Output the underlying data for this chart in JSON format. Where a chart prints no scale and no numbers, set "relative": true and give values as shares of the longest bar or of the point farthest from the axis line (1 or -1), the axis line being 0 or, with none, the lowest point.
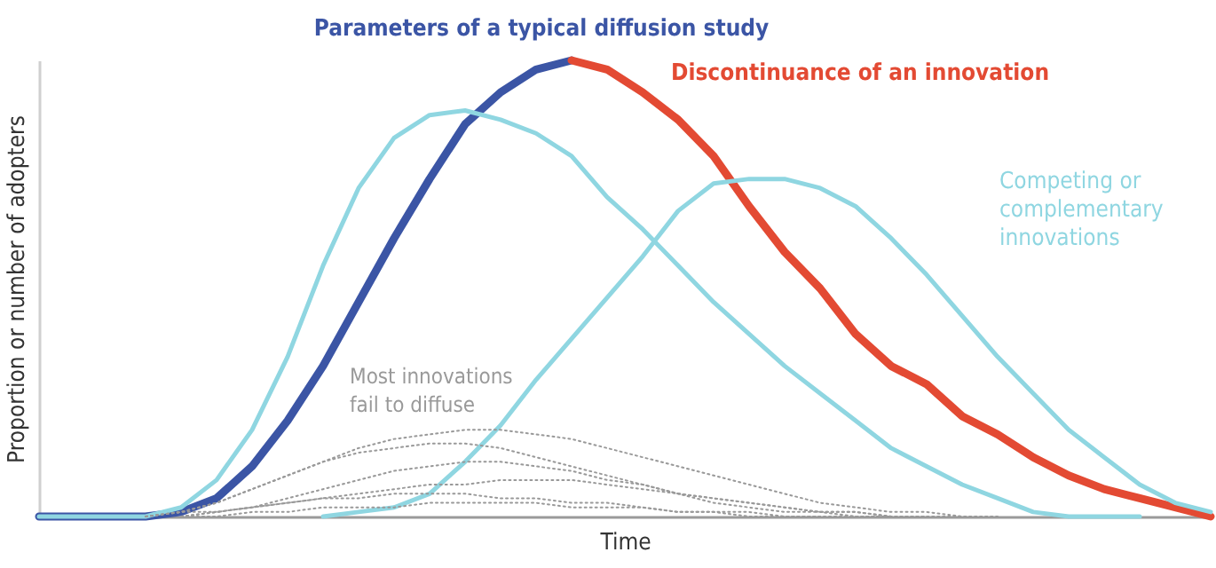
{
  "chart_data": {
    "type": "line",
    "relative": true,
    "xlabel": "Time",
    "ylabel": "Proportion or number of adopters",
    "categories": [
      null,
      null,
      null,
      null,
      null,
      null,
      null,
      null,
      null,
      null,
      null,
      null,
      null,
      null,
      null,
      null,
      null,
      null,
      null,
      null,
      null,
      null,
      null,
      null,
      null,
      null,
      null,
      null,
      null,
      null,
      null,
      null,
      null,
      null
    ],
    "series": [
      {
        "name": "Parameters of a typical diffusion study",
        "color": "#3b55a5",
        "values": [
          0,
          0,
          0,
          0,
          0.01,
          0.04,
          0.11,
          0.21,
          0.33,
          0.47,
          0.61,
          0.74,
          0.86,
          0.93,
          0.98,
          1,
          null,
          null,
          null,
          null,
          null,
          null,
          null,
          null,
          null,
          null,
          null,
          null,
          null,
          null,
          null,
          null,
          null,
          null
        ]
      },
      {
        "name": "Discontinuance of an innovation",
        "color": "#e34a33",
        "values": [
          null,
          null,
          null,
          null,
          null,
          null,
          null,
          null,
          null,
          null,
          null,
          null,
          null,
          null,
          null,
          1,
          0.98,
          0.93,
          0.87,
          0.79,
          0.68,
          0.58,
          0.5,
          0.4,
          0.33,
          0.29,
          0.22,
          0.18,
          0.13,
          0.09,
          0.06,
          0.04,
          0.02,
          0
        ]
      },
      {
        "color": "#8fd6e1",
        "values": [
          0,
          0,
          0,
          0,
          0.02,
          0.08,
          0.19,
          0.35,
          0.55,
          0.72,
          0.83,
          0.88,
          0.89,
          0.87,
          0.84,
          0.79,
          0.7,
          0.63,
          0.55,
          0.47,
          0.4,
          0.33,
          0.27,
          0.21,
          0.15,
          0.11,
          0.07,
          0.04,
          0.01,
          0,
          0,
          0,
          null,
          null
        ]
      },
      {
        "name": "Competing or complementary innovations",
        "color": "#8fd6e1",
        "values": [
          null,
          null,
          null,
          null,
          null,
          null,
          null,
          null,
          0,
          0.01,
          0.02,
          0.05,
          0.12,
          0.2,
          0.3,
          0.39,
          0.48,
          0.57,
          0.67,
          0.73,
          0.74,
          0.74,
          0.72,
          0.68,
          0.61,
          0.53,
          0.44,
          0.35,
          0.27,
          0.19,
          0.13,
          0.07,
          0.03,
          0.01
        ]
      },
      {
        "name": "Most innovations fail to diffuse",
        "color": "#999999",
        "line_style": "dotted",
        "values": [
          null,
          null,
          null,
          0,
          0.01,
          0.03,
          0.06,
          0.09,
          0.12,
          0.15,
          0.17,
          0.18,
          0.19,
          0.19,
          0.18,
          0.17,
          0.15,
          0.13,
          0.11,
          0.09,
          0.07,
          0.05,
          0.03,
          0.02,
          0.01,
          0.01,
          0,
          0,
          null,
          null,
          null,
          null,
          null,
          null
        ]
      },
      {
        "color": "#999999",
        "line_style": "dotted",
        "values": [
          null,
          null,
          null,
          0,
          0.01,
          0.03,
          0.06,
          0.09,
          0.12,
          0.14,
          0.15,
          0.16,
          0.16,
          0.15,
          0.13,
          0.11,
          0.09,
          0.07,
          0.05,
          0.03,
          0.02,
          0.01,
          0.01,
          0,
          0,
          null,
          null,
          null,
          null,
          null,
          null,
          null,
          null,
          null
        ]
      },
      {
        "color": "#999999",
        "line_style": "dotted",
        "values": [
          null,
          null,
          null,
          null,
          0,
          0.01,
          0.02,
          0.04,
          0.06,
          0.08,
          0.1,
          0.11,
          0.12,
          0.12,
          0.11,
          0.1,
          0.08,
          0.07,
          0.05,
          0.04,
          0.03,
          0.02,
          0.01,
          0.01,
          0,
          0,
          0,
          null,
          null,
          null,
          null,
          null,
          null,
          null
        ]
      },
      {
        "color": "#999999",
        "line_style": "dotted",
        "values": [
          null,
          null,
          null,
          null,
          0,
          0.01,
          0.02,
          0.03,
          0.04,
          0.05,
          0.06,
          0.07,
          0.07,
          0.08,
          0.08,
          0.08,
          0.07,
          0.06,
          0.05,
          0.04,
          0.03,
          0.02,
          0.01,
          0.01,
          0,
          0,
          null,
          null,
          null,
          null,
          null,
          null,
          null,
          null
        ]
      },
      {
        "color": "#999999",
        "line_style": "dotted",
        "values": [
          null,
          null,
          null,
          0,
          0.01,
          0.01,
          0.02,
          0.03,
          0.04,
          0.04,
          0.05,
          0.05,
          0.05,
          0.04,
          0.04,
          0.03,
          0.03,
          0.02,
          0.01,
          0.01,
          0,
          0,
          0,
          null,
          null,
          null,
          null,
          null,
          null,
          null,
          null,
          null,
          null,
          null
        ]
      },
      {
        "color": "#999999",
        "line_style": "dotted",
        "values": [
          null,
          null,
          null,
          null,
          0,
          0,
          0.01,
          0.01,
          0.02,
          0.02,
          0.02,
          0.03,
          0.03,
          0.03,
          0.03,
          0.02,
          0.02,
          0.02,
          0.01,
          0.01,
          0.01,
          0,
          0,
          0,
          0,
          null,
          null,
          null,
          null,
          null,
          null,
          null,
          null,
          null
        ]
      }
    ]
  }
}
